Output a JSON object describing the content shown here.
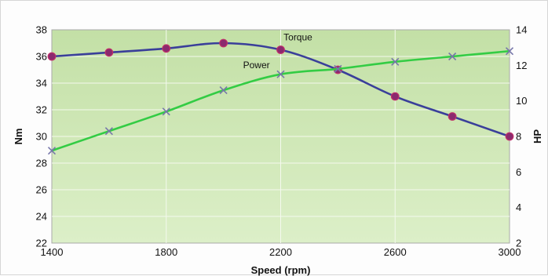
{
  "chart_data": {
    "type": "line",
    "title": "",
    "xlabel": "Speed (rpm)",
    "ylabel_left": "Nm",
    "ylabel_right": "HP",
    "x": [
      1400,
      1600,
      1800,
      2000,
      2200,
      2400,
      2600,
      2800,
      3000
    ],
    "x_ticks": [
      1400,
      1800,
      2200,
      2600,
      3000
    ],
    "xlim": [
      1400,
      3000
    ],
    "ylim_left": [
      22,
      38
    ],
    "yticks_left": [
      22,
      24,
      26,
      28,
      30,
      32,
      34,
      36,
      38
    ],
    "ylim_right": [
      2,
      14
    ],
    "yticks_right": [
      2,
      4,
      6,
      8,
      10,
      12,
      14
    ],
    "grid": true,
    "legend": "none",
    "plot_background": "#cfe6b8",
    "series": [
      {
        "name": "Torque",
        "axis": "left",
        "color": "#3a3f9a",
        "marker": "circle",
        "marker_color": "#8b2a6e",
        "values": [
          36.0,
          36.3,
          36.6,
          37.0,
          36.5,
          35.0,
          33.0,
          31.5,
          30.0
        ]
      },
      {
        "name": "Power",
        "axis": "right",
        "color": "#33cc44",
        "marker": "x",
        "marker_color": "#7777aa",
        "values": [
          7.2,
          8.3,
          9.4,
          10.6,
          11.5,
          11.8,
          12.2,
          12.5,
          12.8
        ]
      }
    ]
  }
}
